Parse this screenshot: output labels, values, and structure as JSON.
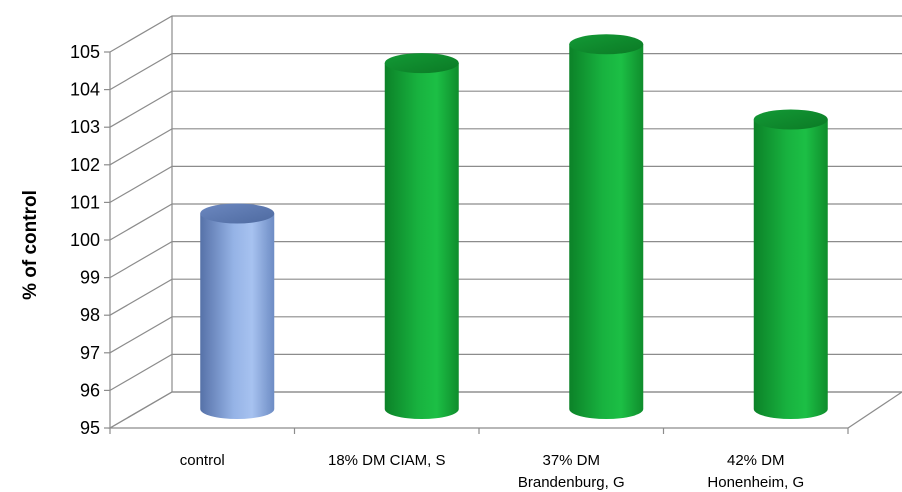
{
  "chart_data": {
    "type": "bar",
    "style": "3d-cylinder",
    "categories": [
      [
        "control"
      ],
      [
        "18% DM CIAM, S"
      ],
      [
        "37% DM",
        "Brandenburg, G"
      ],
      [
        "42% DM",
        "Honenheim, G"
      ]
    ],
    "values": [
      100.2,
      104.2,
      104.7,
      102.7
    ],
    "bar_colors": [
      "#7f9fd4",
      "#16a33a",
      "#16a33a",
      "#16a33a"
    ],
    "title": "",
    "xlabel": "",
    "ylabel": "% of control",
    "ylim": [
      95,
      105
    ],
    "yticks": [
      95,
      96,
      97,
      98,
      99,
      100,
      101,
      102,
      103,
      104,
      105
    ],
    "grid": true
  }
}
